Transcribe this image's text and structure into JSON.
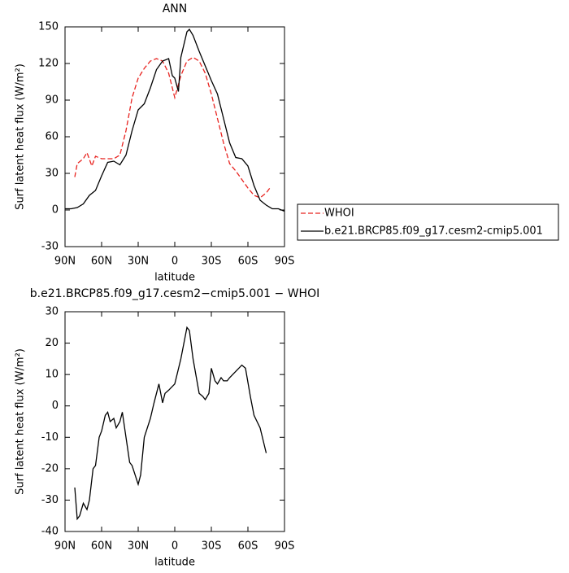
{
  "chart_data": [
    {
      "type": "line",
      "title": "ANN",
      "xlabel": "latitude",
      "ylabel": "Surf latent heat flux (W/m²)",
      "xlim": [
        90,
        -90
      ],
      "ylim": [
        -30,
        150
      ],
      "xticks": [
        {
          "value": 90,
          "label": "90N"
        },
        {
          "value": 60,
          "label": "60N"
        },
        {
          "value": 30,
          "label": "30N"
        },
        0,
        {
          "value": -30,
          "label": "30S"
        },
        {
          "value": -60,
          "label": "60S"
        },
        {
          "value": -90,
          "label": "90S"
        }
      ],
      "yticks": [
        -30,
        0,
        30,
        60,
        90,
        120,
        150
      ],
      "legend": "outside-right",
      "series": [
        {
          "name": "WHOI",
          "color": "#e8231f",
          "line_style": "dashed",
          "x": [
            82,
            80,
            75,
            72,
            68,
            65,
            60,
            55,
            50,
            45,
            40,
            35,
            30,
            25,
            20,
            15,
            10,
            5,
            0,
            -5,
            -10,
            -15,
            -20,
            -25,
            -30,
            -35,
            -40,
            -45,
            -50,
            -55,
            -60,
            -65,
            -70,
            -75,
            -78
          ],
          "values": [
            27,
            38,
            42,
            47,
            36,
            44,
            42,
            42,
            42,
            45,
            65,
            92,
            108,
            116,
            122,
            124,
            122,
            112,
            92,
            110,
            122,
            125,
            122,
            112,
            95,
            75,
            55,
            38,
            32,
            25,
            18,
            12,
            10,
            14,
            18
          ]
        },
        {
          "name": "b.e21.BRCP85.f09_g17.cesm2-cmip5.001",
          "color": "#000000",
          "line_style": "solid",
          "x": [
            90,
            85,
            80,
            75,
            70,
            65,
            60,
            55,
            50,
            45,
            40,
            35,
            30,
            25,
            20,
            15,
            10,
            5,
            2,
            0,
            -3,
            -5,
            -10,
            -12,
            -15,
            -20,
            -25,
            -30,
            -35,
            -40,
            -45,
            -50,
            -55,
            -60,
            -65,
            -70,
            -75,
            -80,
            -85,
            -90
          ],
          "values": [
            1,
            1,
            2,
            5,
            12,
            16,
            28,
            39,
            40,
            37,
            45,
            65,
            82,
            87,
            100,
            115,
            122,
            124,
            110,
            108,
            97,
            125,
            146,
            148,
            143,
            130,
            118,
            106,
            95,
            75,
            55,
            43,
            42,
            36,
            20,
            8,
            4,
            1,
            1,
            -1
          ]
        }
      ]
    },
    {
      "type": "line",
      "title": "b.e21.BRCP85.f09_g17.cesm2−cmip5.001 − WHOI",
      "xlabel": "latitude",
      "ylabel": "Surf latent heat flux (W/m²)",
      "xlim": [
        90,
        -90
      ],
      "ylim": [
        -40,
        30
      ],
      "xticks": [
        {
          "value": 90,
          "label": "90N"
        },
        {
          "value": 60,
          "label": "60N"
        },
        {
          "value": 30,
          "label": "30N"
        },
        0,
        {
          "value": -30,
          "label": "30S"
        },
        {
          "value": -60,
          "label": "60S"
        },
        {
          "value": -90,
          "label": "90S"
        }
      ],
      "yticks": [
        -40,
        -30,
        -20,
        -10,
        0,
        10,
        20,
        30
      ],
      "series": [
        {
          "color": "#000000",
          "line_style": "solid",
          "x": [
            82,
            80,
            78,
            75,
            72,
            70,
            67,
            65,
            62,
            60,
            57,
            55,
            53,
            50,
            48,
            45,
            43,
            40,
            37,
            35,
            30,
            28,
            25,
            20,
            17,
            13,
            10,
            8,
            5,
            0,
            -5,
            -10,
            -12,
            -15,
            -20,
            -23,
            -25,
            -28,
            -30,
            -33,
            -35,
            -38,
            -40,
            -43,
            -45,
            -50,
            -55,
            -58,
            -62,
            -65,
            -70,
            -75
          ],
          "values": [
            -26,
            -36,
            -35,
            -31,
            -33,
            -30,
            -20,
            -19,
            -10,
            -8,
            -3,
            -2,
            -5,
            -4,
            -7,
            -5,
            -2,
            -10,
            -18,
            -19,
            -25,
            -22,
            -10,
            -4,
            1,
            7,
            1,
            4,
            5,
            7,
            15,
            25,
            24,
            15,
            4,
            3,
            2,
            4,
            12,
            8,
            7,
            9,
            8,
            8,
            9,
            11,
            13,
            12,
            3,
            -3,
            -7,
            -15
          ]
        }
      ]
    }
  ]
}
